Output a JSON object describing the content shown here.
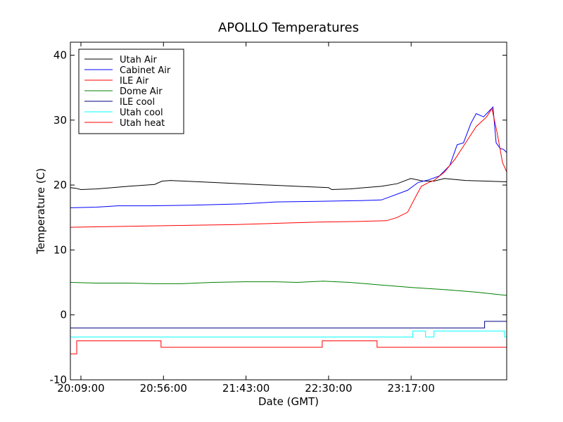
{
  "chart_data": {
    "type": "line",
    "title": "APOLLO Temperatures",
    "xlabel": "Date (GMT)",
    "ylabel": "Temperature (C)",
    "xlim": [
      20.05,
      24.19
    ],
    "ylim": [
      -10,
      42
    ],
    "yticks": [
      -10,
      0,
      10,
      20,
      30,
      40
    ],
    "xticks": [
      {
        "value": 20.15,
        "label": "20:09:00"
      },
      {
        "value": 20.9333,
        "label": "20:56:00"
      },
      {
        "value": 21.7167,
        "label": "21:43:00"
      },
      {
        "value": 22.5,
        "label": "22:30:00"
      },
      {
        "value": 23.2833,
        "label": "23:17:00"
      }
    ],
    "legend_position": "top-left",
    "series": [
      {
        "name": "Utah Air",
        "color": "#000000",
        "step": false,
        "points": [
          [
            20.05,
            19.6
          ],
          [
            20.1,
            19.5
          ],
          [
            20.15,
            19.3
          ],
          [
            20.3,
            19.4
          ],
          [
            20.6,
            19.8
          ],
          [
            20.85,
            20.1
          ],
          [
            20.92,
            20.6
          ],
          [
            21.0,
            20.7
          ],
          [
            21.4,
            20.4
          ],
          [
            21.8,
            20.1
          ],
          [
            22.2,
            19.8
          ],
          [
            22.5,
            19.6
          ],
          [
            22.53,
            19.3
          ],
          [
            22.7,
            19.4
          ],
          [
            23.0,
            19.8
          ],
          [
            23.15,
            20.2
          ],
          [
            23.28,
            21.0
          ],
          [
            23.4,
            20.6
          ],
          [
            23.5,
            20.6
          ],
          [
            23.6,
            21.0
          ],
          [
            23.8,
            20.7
          ],
          [
            24.0,
            20.6
          ],
          [
            24.19,
            20.5
          ]
        ]
      },
      {
        "name": "Cabinet Air",
        "color": "#0000ff",
        "step": false,
        "points": [
          [
            20.05,
            16.5
          ],
          [
            20.3,
            16.6
          ],
          [
            20.5,
            16.8
          ],
          [
            20.8,
            16.8
          ],
          [
            21.2,
            16.9
          ],
          [
            21.7,
            17.1
          ],
          [
            22.0,
            17.4
          ],
          [
            22.4,
            17.5
          ],
          [
            22.8,
            17.6
          ],
          [
            23.0,
            17.7
          ],
          [
            23.1,
            18.3
          ],
          [
            23.25,
            19.2
          ],
          [
            23.35,
            20.4
          ],
          [
            23.45,
            20.8
          ],
          [
            23.55,
            21.4
          ],
          [
            23.65,
            23.0
          ],
          [
            23.72,
            26.2
          ],
          [
            23.78,
            26.5
          ],
          [
            23.85,
            29.5
          ],
          [
            23.9,
            31.0
          ],
          [
            23.97,
            30.5
          ],
          [
            24.03,
            31.5
          ],
          [
            24.06,
            32.0
          ],
          [
            24.09,
            26.5
          ],
          [
            24.13,
            25.6
          ],
          [
            24.16,
            25.5
          ],
          [
            24.19,
            25.0
          ]
        ]
      },
      {
        "name": "ILE Air",
        "color": "#ff0000",
        "step": false,
        "points": [
          [
            20.05,
            13.5
          ],
          [
            20.4,
            13.6
          ],
          [
            20.8,
            13.7
          ],
          [
            21.2,
            13.8
          ],
          [
            21.6,
            13.9
          ],
          [
            22.0,
            14.1
          ],
          [
            22.4,
            14.3
          ],
          [
            22.8,
            14.4
          ],
          [
            23.05,
            14.5
          ],
          [
            23.15,
            15.0
          ],
          [
            23.25,
            15.8
          ],
          [
            23.32,
            18.0
          ],
          [
            23.38,
            19.8
          ],
          [
            23.45,
            20.4
          ],
          [
            23.5,
            20.7
          ],
          [
            23.6,
            22.0
          ],
          [
            23.7,
            24.0
          ],
          [
            23.8,
            26.5
          ],
          [
            23.9,
            29.0
          ],
          [
            24.0,
            30.5
          ],
          [
            24.05,
            31.8
          ],
          [
            24.1,
            28.0
          ],
          [
            24.15,
            23.5
          ],
          [
            24.19,
            22.0
          ]
        ]
      },
      {
        "name": "Dome Air",
        "color": "#008000",
        "step": false,
        "points": [
          [
            20.05,
            5.0
          ],
          [
            20.3,
            4.9
          ],
          [
            20.6,
            4.9
          ],
          [
            20.85,
            4.8
          ],
          [
            21.1,
            4.8
          ],
          [
            21.4,
            5.0
          ],
          [
            21.7,
            5.1
          ],
          [
            22.0,
            5.1
          ],
          [
            22.2,
            5.0
          ],
          [
            22.45,
            5.2
          ],
          [
            22.7,
            5.0
          ],
          [
            23.0,
            4.6
          ],
          [
            23.3,
            4.2
          ],
          [
            23.6,
            3.9
          ],
          [
            23.9,
            3.5
          ],
          [
            24.19,
            3.0
          ]
        ]
      },
      {
        "name": "ILE cool",
        "color": "#000080",
        "step": true,
        "points": [
          [
            20.05,
            -2.0
          ],
          [
            23.98,
            -2.0
          ],
          [
            23.98,
            -1.0
          ],
          [
            24.19,
            -1.0
          ]
        ]
      },
      {
        "name": "Utah cool",
        "color": "#00ffff",
        "step": true,
        "points": [
          [
            20.05,
            -3.4
          ],
          [
            23.3,
            -3.4
          ],
          [
            23.3,
            -2.5
          ],
          [
            23.42,
            -2.5
          ],
          [
            23.42,
            -3.4
          ],
          [
            23.5,
            -3.4
          ],
          [
            23.5,
            -2.5
          ],
          [
            24.17,
            -2.5
          ],
          [
            24.17,
            -3.4
          ],
          [
            24.19,
            -3.4
          ]
        ]
      },
      {
        "name": "Utah heat",
        "color": "#ff0000",
        "step": true,
        "points": [
          [
            20.05,
            -6.0
          ],
          [
            20.11,
            -6.0
          ],
          [
            20.11,
            -4.0
          ],
          [
            20.91,
            -4.0
          ],
          [
            20.91,
            -5.0
          ],
          [
            22.44,
            -5.0
          ],
          [
            22.44,
            -4.0
          ],
          [
            22.96,
            -4.0
          ],
          [
            22.96,
            -5.0
          ],
          [
            24.19,
            -5.0
          ]
        ]
      }
    ]
  }
}
